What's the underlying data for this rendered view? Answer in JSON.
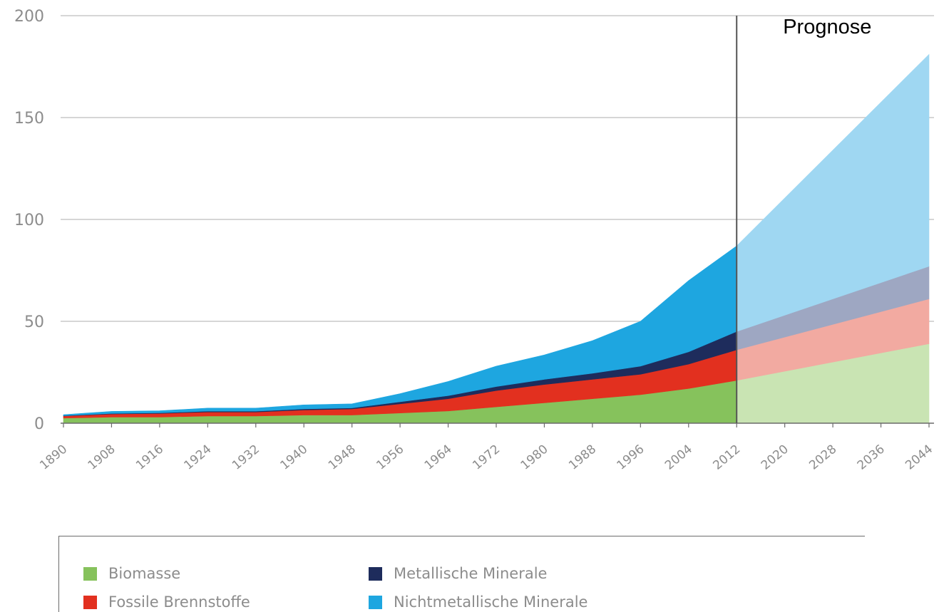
{
  "chart_data": {
    "type": "area",
    "stacked": true,
    "title": "",
    "xlabel": "",
    "ylabel": "",
    "ylim": [
      0,
      200
    ],
    "yticks": [
      "0",
      "50",
      "100",
      "150",
      "200"
    ],
    "xticks": [
      "1890",
      "1908",
      "1916",
      "1924",
      "1932",
      "1940",
      "1948",
      "1956",
      "1964",
      "1972",
      "1980",
      "1988",
      "1996",
      "2004",
      "2012",
      "2020",
      "2028",
      "2036",
      "2044"
    ],
    "grid": true,
    "annotation": {
      "text": "Prognose",
      "at_tick": "2012"
    },
    "legend_position": "bottom",
    "historical": {
      "x": [
        "1890",
        "1908",
        "1916",
        "1924",
        "1932",
        "1940",
        "1948",
        "1956",
        "1964",
        "1972",
        "1980",
        "1988",
        "1996",
        "2004",
        "2012"
      ],
      "series": [
        {
          "name": "Biomasse",
          "color": "#86c25c",
          "values": [
            2.5,
            3,
            3,
            3.5,
            3.5,
            4,
            4,
            5,
            6,
            8,
            10,
            12,
            14,
            17,
            21
          ]
        },
        {
          "name": "Fossile Brennstoffe",
          "color": "#e2301f",
          "values": [
            1,
            1.5,
            1.8,
            2,
            2,
            2.5,
            3,
            4.5,
            6,
            8,
            9,
            9.5,
            10,
            12,
            15
          ]
        },
        {
          "name": "Metallische Minerale",
          "color": "#1e2c5c",
          "values": [
            0.2,
            0.3,
            0.3,
            0.4,
            0.4,
            0.5,
            0.5,
            1,
            1.5,
            2,
            2.5,
            3,
            4,
            6,
            9
          ]
        },
        {
          "name": "Nichtmetallische Minerale",
          "color": "#1ea6e0",
          "values": [
            0.5,
            1,
            1,
            1.5,
            1.5,
            2,
            2,
            4,
            7,
            10,
            12,
            16,
            22,
            35,
            42
          ]
        }
      ]
    },
    "forecast": {
      "x": [
        "2012",
        "2044"
      ],
      "series": [
        {
          "name": "Biomasse",
          "color": "#c9e4b3",
          "values": [
            21,
            39
          ]
        },
        {
          "name": "Fossile Brennstoffe",
          "color": "#f2aaa1",
          "values": [
            15,
            22
          ]
        },
        {
          "name": "Metallische Minerale",
          "color": "#9ea7c2",
          "values": [
            9,
            16
          ]
        },
        {
          "name": "Nichtmetallische Minerale",
          "color": "#9fd7f2",
          "values": [
            42,
            104
          ]
        }
      ]
    }
  },
  "legend": {
    "items": [
      {
        "label": "Biomasse",
        "color": "#86c25c"
      },
      {
        "label": "Metallische Minerale",
        "color": "#1e2c5c"
      },
      {
        "label": "Fossile Brennstoffe",
        "color": "#e2301f"
      },
      {
        "label": "Nichtmetallische Minerale",
        "color": "#1ea6e0"
      }
    ]
  }
}
